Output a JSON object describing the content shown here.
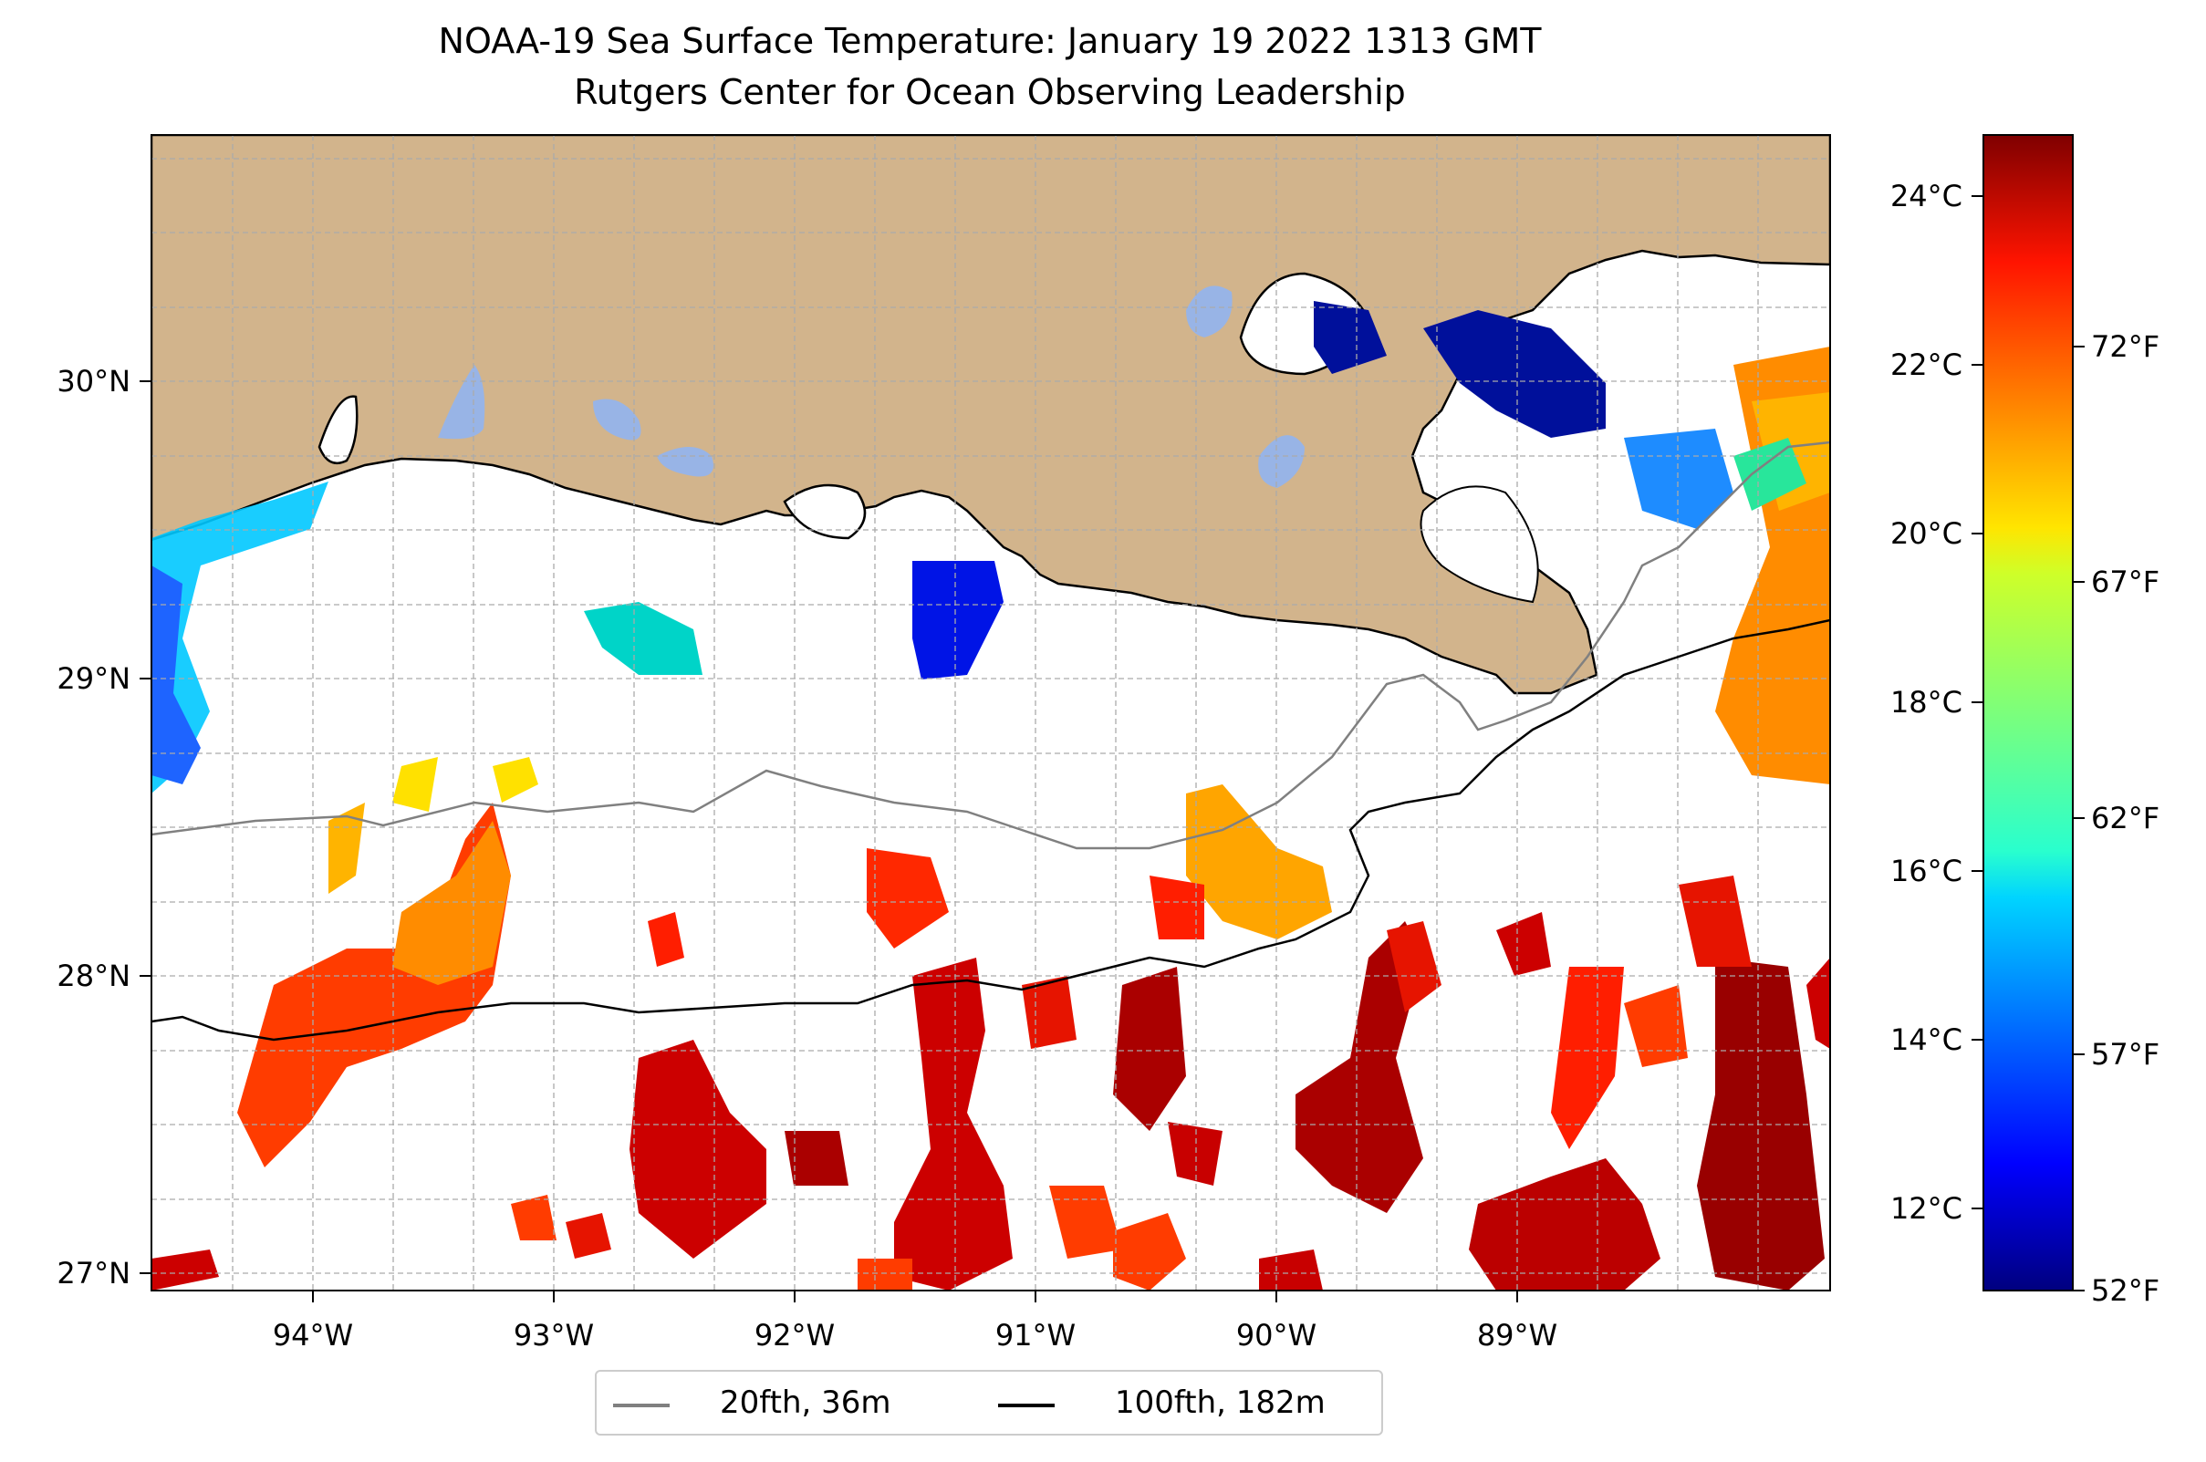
{
  "title": {
    "line1": "NOAA-19 Sea Surface Temperature: January 19 2022 1313 GMT",
    "line2": "Rutgers Center for Ocean Observing Leadership"
  },
  "map": {
    "lon_ticks": [
      "94°W",
      "93°W",
      "92°W",
      "91°W",
      "90°W",
      "89°W"
    ],
    "lat_ticks": [
      "27°N",
      "28°N",
      "29°N",
      "30°N"
    ],
    "colors": {
      "land": "#d2b48c",
      "lakes": "#98b4e6",
      "ocean_nodata": "#ffffff",
      "grid": "#aaaaaa"
    }
  },
  "colorbar": {
    "celsius_ticks": [
      "24°C",
      "22°C",
      "20°C",
      "18°C",
      "16°C",
      "14°C",
      "12°C"
    ],
    "fahrenheit_ticks": [
      "72°F",
      "67°F",
      "62°F",
      "57°F",
      "52°F"
    ],
    "colormap": "jet",
    "range_f": [
      52,
      76
    ]
  },
  "legend": {
    "items": [
      {
        "label": "20fth, 36m",
        "color": "#808080"
      },
      {
        "label": "100fth, 182m",
        "color": "#000000"
      }
    ]
  }
}
